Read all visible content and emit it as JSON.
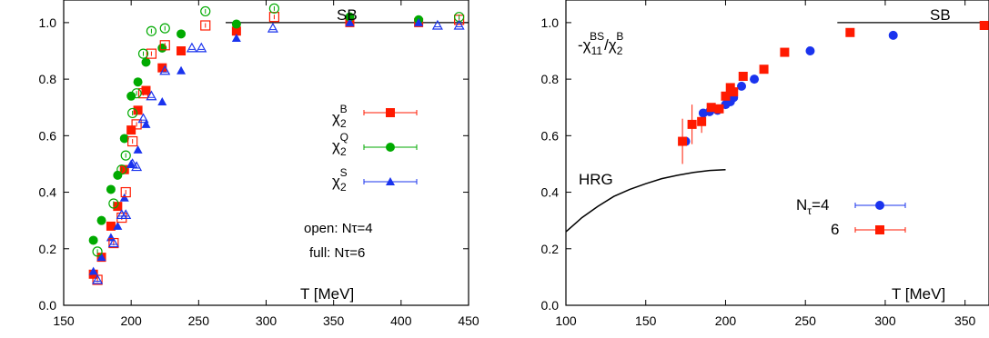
{
  "colors": {
    "B": "#ff1a00",
    "Q": "#00aa00",
    "S": "#1a33ee",
    "nt4": "#1a33ee",
    "nt6": "#ff1a00"
  },
  "chart_data": [
    {
      "type": "scatter",
      "xlim": [
        150,
        450
      ],
      "ylim": [
        0,
        1.08
      ],
      "xticks": [
        "150",
        "200",
        "250",
        "300",
        "350",
        "400",
        "450"
      ],
      "yticks": [
        "0.0",
        "0.2",
        "0.4",
        "0.6",
        "0.8",
        "1.0"
      ],
      "xlabel": "T [MeV]",
      "ylabel": "",
      "legend_position": "right",
      "legend": {
        "B": "χ2B",
        "Q": "χ2Q",
        "S": "χ2S"
      },
      "reference_line": {
        "label": "SB",
        "y": 1.0,
        "x": [
          270,
          450
        ]
      },
      "annotations": {
        "open": "open: Nτ=4",
        "full": "full: Nτ=6"
      },
      "series": [
        {
          "name": "χ2B",
          "style": "full",
          "x": [
            172,
            178,
            185,
            190,
            195,
            200,
            205,
            211,
            223,
            237,
            278,
            362,
            413
          ],
          "y": [
            0.11,
            0.17,
            0.28,
            0.35,
            0.48,
            0.62,
            0.69,
            0.76,
            0.84,
            0.9,
            0.97,
            1.0,
            1.0
          ]
        },
        {
          "name": "χ2Q",
          "style": "full",
          "x": [
            172,
            178,
            185,
            190,
            195,
            200,
            205,
            211,
            223,
            237,
            278,
            362,
            413
          ],
          "y": [
            0.23,
            0.3,
            0.41,
            0.46,
            0.59,
            0.74,
            0.79,
            0.86,
            0.91,
            0.96,
            0.995,
            1.02,
            1.01
          ]
        },
        {
          "name": "χ2S",
          "style": "full",
          "x": [
            172,
            178,
            185,
            190,
            195,
            200,
            205,
            211,
            223,
            237,
            278,
            362,
            413
          ],
          "y": [
            0.12,
            0.17,
            0.24,
            0.28,
            0.38,
            0.5,
            0.55,
            0.64,
            0.72,
            0.83,
            0.945,
            1.0,
            1.0
          ]
        },
        {
          "name": "χ2B",
          "style": "open",
          "x": [
            175,
            187,
            193,
            196,
            201,
            204,
            209,
            215,
            225,
            255,
            306,
            443
          ],
          "y": [
            0.09,
            0.22,
            0.31,
            0.4,
            0.58,
            0.64,
            0.75,
            0.89,
            0.92,
            0.99,
            1.02,
            1.01
          ]
        },
        {
          "name": "χ2Q",
          "style": "open",
          "x": [
            175,
            187,
            193,
            196,
            201,
            204,
            209,
            215,
            225,
            255,
            306,
            443
          ],
          "y": [
            0.19,
            0.36,
            0.48,
            0.53,
            0.68,
            0.75,
            0.89,
            0.97,
            0.98,
            1.04,
            1.05,
            1.02
          ]
        },
        {
          "name": "χ2S",
          "style": "open",
          "x": [
            175,
            187,
            193,
            196,
            201,
            204,
            209,
            215,
            225,
            245,
            252,
            305,
            427,
            443
          ],
          "y": [
            0.09,
            0.22,
            0.32,
            0.32,
            0.5,
            0.49,
            0.66,
            0.74,
            0.83,
            0.91,
            0.91,
            0.98,
            0.99,
            0.99
          ]
        }
      ]
    },
    {
      "type": "scatter",
      "xlim": [
        100,
        365
      ],
      "ylim": [
        0,
        1.08
      ],
      "xticks": [
        "100",
        "150",
        "200",
        "250",
        "300",
        "350"
      ],
      "yticks": [
        "0.0",
        "0.2",
        "0.4",
        "0.6",
        "0.8",
        "1.0"
      ],
      "xlabel": "T [MeV]",
      "ylabel": "-χ11BS/χ2B",
      "legend_position": "center-right",
      "reference_line": {
        "label": "SB",
        "y": 1.0,
        "x": [
          270,
          365
        ]
      },
      "curve": {
        "label": "HRG",
        "x": [
          100,
          110,
          120,
          130,
          140,
          150,
          160,
          170,
          180,
          190,
          200
        ],
        "y": [
          0.26,
          0.31,
          0.35,
          0.385,
          0.41,
          0.43,
          0.448,
          0.46,
          0.47,
          0.477,
          0.48
        ]
      },
      "legend": {
        "nt4": "Nτ=4",
        "nt6": "6"
      },
      "series": [
        {
          "name": "Nτ=4",
          "x": [
            175,
            186,
            190,
            195,
            200,
            203,
            205,
            210,
            218,
            253,
            305
          ],
          "y": [
            0.58,
            0.68,
            0.685,
            0.69,
            0.71,
            0.72,
            0.735,
            0.775,
            0.8,
            0.9,
            0.955
          ]
        },
        {
          "name": "6",
          "x": [
            173,
            179,
            185,
            191,
            196,
            200,
            203,
            205,
            211,
            224,
            237,
            278,
            362
          ],
          "y": [
            0.58,
            0.64,
            0.65,
            0.7,
            0.695,
            0.74,
            0.77,
            0.755,
            0.81,
            0.835,
            0.895,
            0.965,
            0.99
          ]
        }
      ]
    }
  ]
}
